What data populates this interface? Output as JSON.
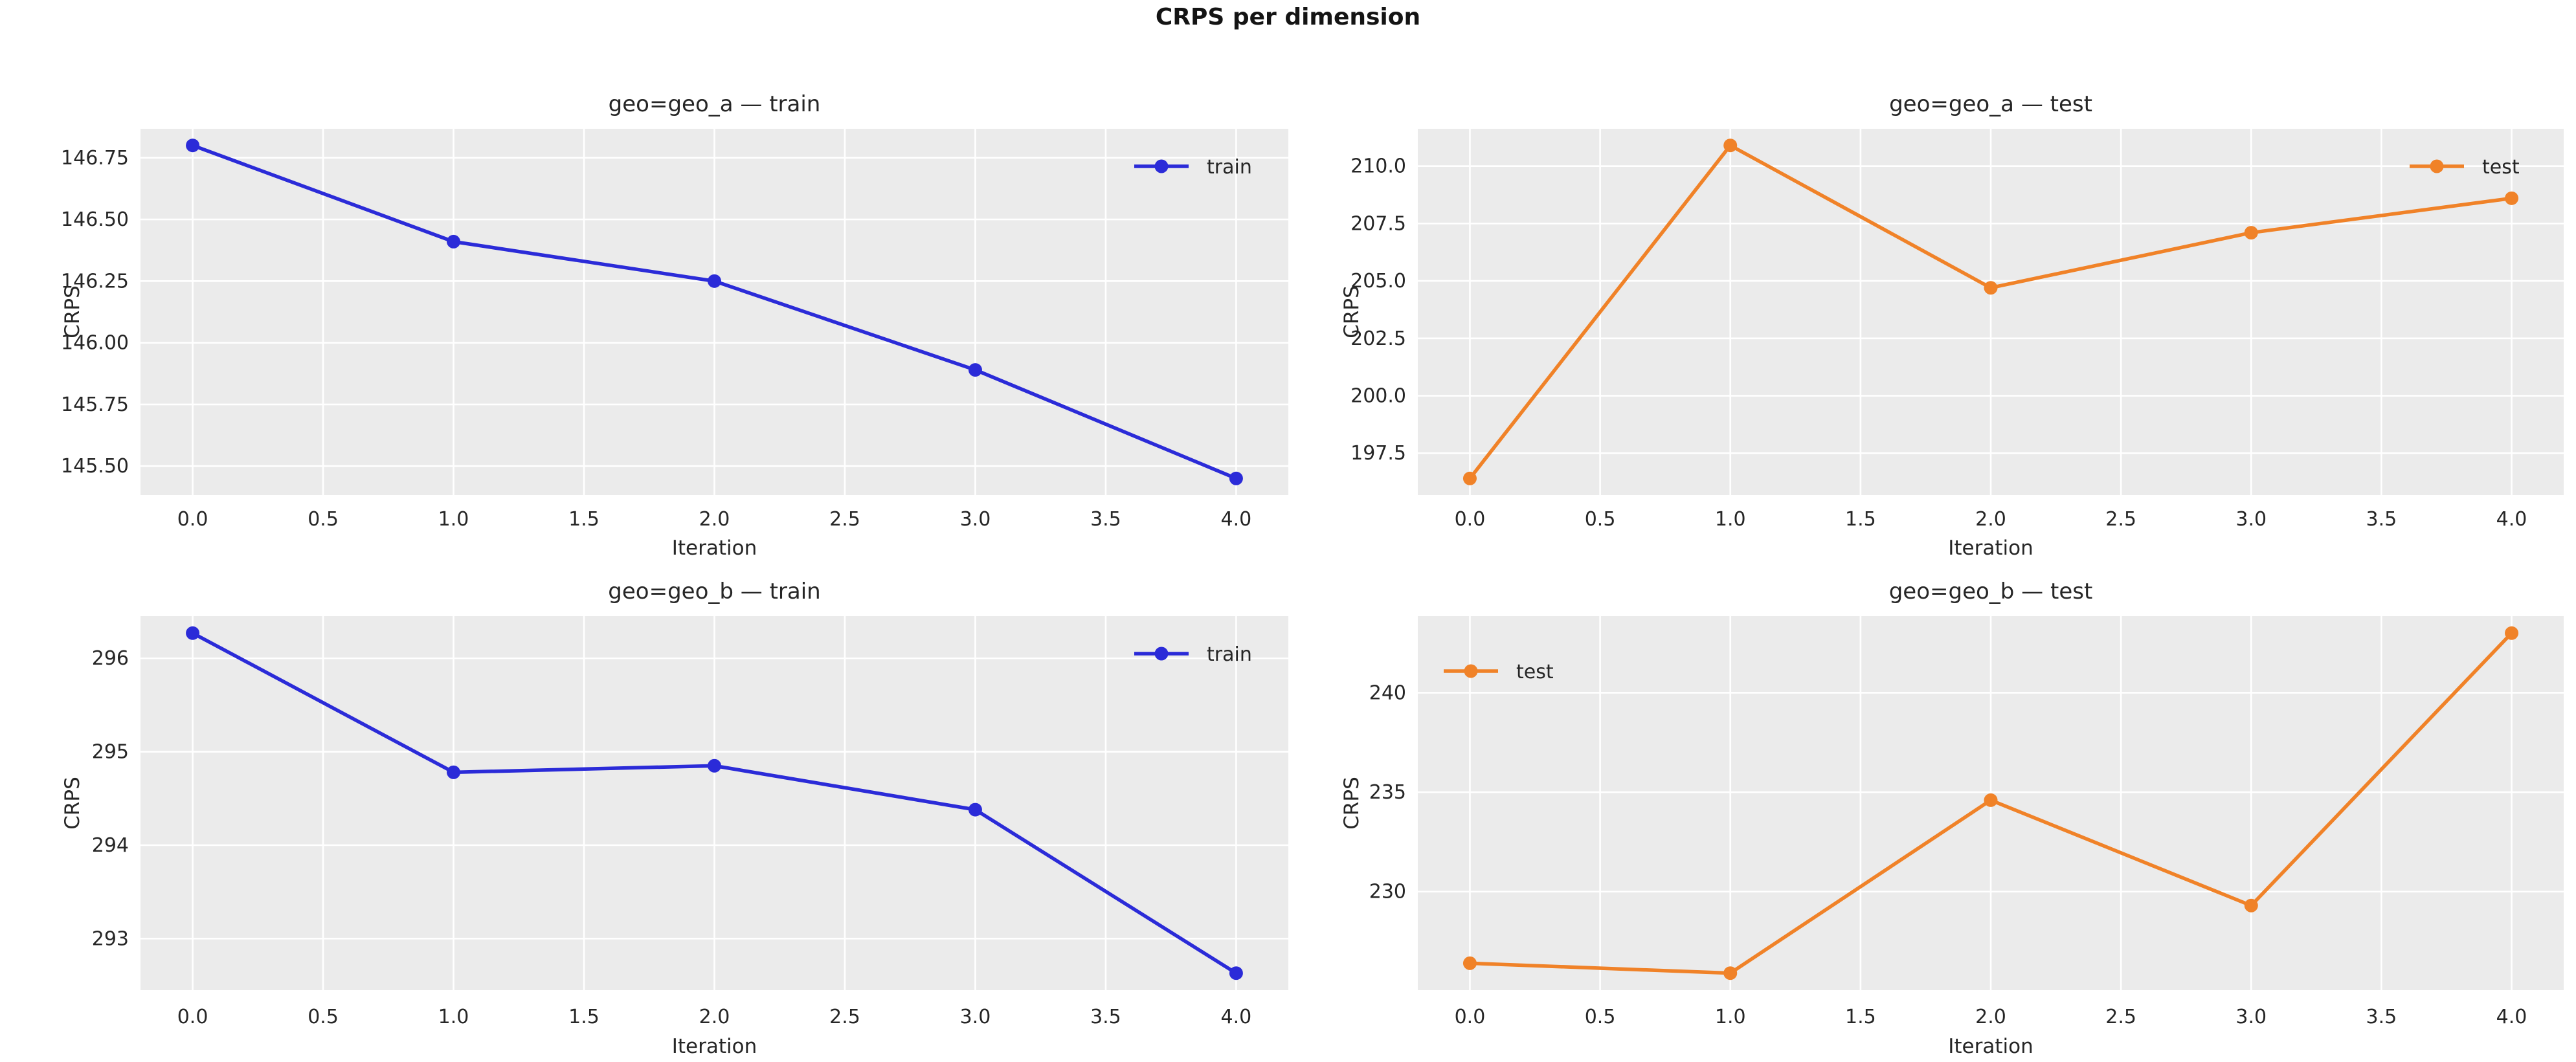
{
  "figure": {
    "suptitle": "CRPS per dimension",
    "background": "#ffffff",
    "plot_background": "#ebebeb",
    "grid_color": "#ffffff",
    "text_color": "#262626",
    "train_color": "#2b2bd8",
    "test_color": "#f08228"
  },
  "chart_data": [
    {
      "type": "line",
      "title": "geo=geo_a — train",
      "xlabel": "Iteration",
      "ylabel": "CRPS",
      "grid": true,
      "legend": {
        "label": "train",
        "position": "upper right"
      },
      "color": "#2b2bd8",
      "x": [
        0,
        1,
        2,
        3,
        4
      ],
      "values": [
        146.8,
        146.41,
        146.25,
        145.89,
        145.45
      ],
      "xlim": [
        -0.2,
        4.2
      ],
      "ylim": [
        145.3825,
        146.8675
      ],
      "xticks": [
        0,
        0.5,
        1,
        1.5,
        2,
        2.5,
        3,
        3.5,
        4
      ],
      "xtick_labels": [
        "0.0",
        "0.5",
        "1.0",
        "1.5",
        "2.0",
        "2.5",
        "3.0",
        "3.5",
        "4.0"
      ],
      "yticks": [
        146.75,
        146.5,
        146.25,
        146.0,
        145.75,
        145.5
      ],
      "ytick_labels": [
        "146.75",
        "146.50",
        "146.25",
        "146.00",
        "145.75",
        "145.50"
      ]
    },
    {
      "type": "line",
      "title": "geo=geo_a — test",
      "xlabel": "Iteration",
      "ylabel": "CRPS",
      "grid": true,
      "legend": {
        "label": "test",
        "position": "upper right"
      },
      "color": "#f08228",
      "x": [
        0,
        1,
        2,
        3,
        4
      ],
      "values": [
        196.4,
        210.9,
        204.7,
        207.1,
        208.6
      ],
      "xlim": [
        -0.2,
        4.2
      ],
      "ylim": [
        195.675,
        211.625
      ],
      "xticks": [
        0,
        0.5,
        1,
        1.5,
        2,
        2.5,
        3,
        3.5,
        4
      ],
      "xtick_labels": [
        "0.0",
        "0.5",
        "1.0",
        "1.5",
        "2.0",
        "2.5",
        "3.0",
        "3.5",
        "4.0"
      ],
      "yticks": [
        210.0,
        207.5,
        205.0,
        202.5,
        200.0,
        197.5
      ],
      "ytick_labels": [
        "210.0",
        "207.5",
        "205.0",
        "202.5",
        "200.0",
        "197.5"
      ]
    },
    {
      "type": "line",
      "title": "geo=geo_b — train",
      "xlabel": "Iteration",
      "ylabel": "CRPS",
      "grid": true,
      "legend": {
        "label": "train",
        "position": "upper right"
      },
      "color": "#2b2bd8",
      "x": [
        0,
        1,
        2,
        3,
        4
      ],
      "values": [
        296.27,
        294.78,
        294.85,
        294.38,
        292.63
      ],
      "xlim": [
        -0.2,
        4.2
      ],
      "ylim": [
        292.448,
        296.452
      ],
      "xticks": [
        0,
        0.5,
        1,
        1.5,
        2,
        2.5,
        3,
        3.5,
        4
      ],
      "xtick_labels": [
        "0.0",
        "0.5",
        "1.0",
        "1.5",
        "2.0",
        "2.5",
        "3.0",
        "3.5",
        "4.0"
      ],
      "yticks": [
        296,
        295,
        294,
        293
      ],
      "ytick_labels": [
        "296",
        "295",
        "294",
        "293"
      ]
    },
    {
      "type": "line",
      "title": "geo=geo_b — test",
      "xlabel": "Iteration",
      "ylabel": "CRPS",
      "grid": true,
      "legend": {
        "label": "test",
        "position": "upper left"
      },
      "color": "#f08228",
      "x": [
        0,
        1,
        2,
        3,
        4
      ],
      "values": [
        226.4,
        225.9,
        234.6,
        229.3,
        243.0
      ],
      "xlim": [
        -0.2,
        4.2
      ],
      "ylim": [
        225.045,
        243.855
      ],
      "xticks": [
        0,
        0.5,
        1,
        1.5,
        2,
        2.5,
        3,
        3.5,
        4
      ],
      "xtick_labels": [
        "0.0",
        "0.5",
        "1.0",
        "1.5",
        "2.0",
        "2.5",
        "3.0",
        "3.5",
        "4.0"
      ],
      "yticks": [
        240,
        235,
        230
      ],
      "ytick_labels": [
        "240",
        "235",
        "230"
      ]
    }
  ]
}
